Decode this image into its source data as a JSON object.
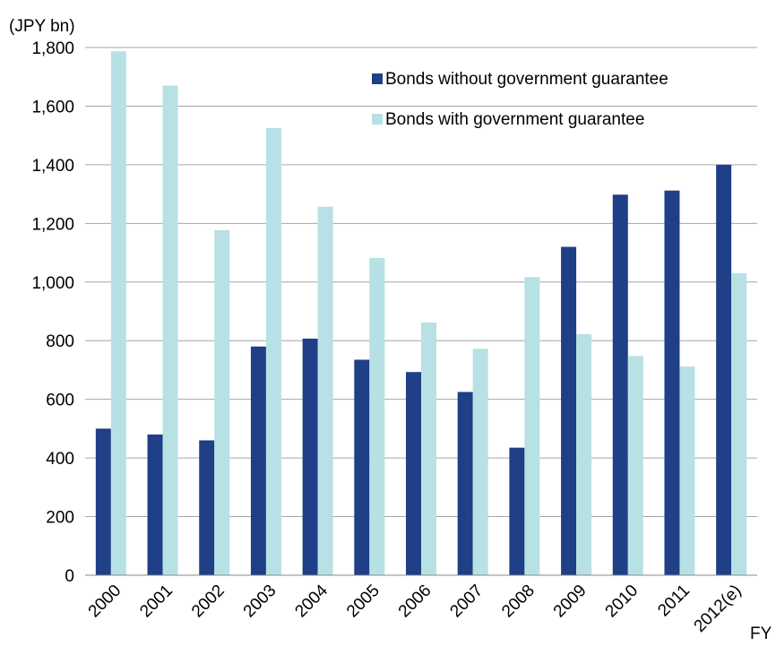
{
  "chart_data": {
    "type": "bar",
    "title": "",
    "ylabel": "(JPY bn)",
    "xlabel": "FY",
    "ylim": [
      0,
      1800
    ],
    "yticks": [
      0,
      200,
      400,
      600,
      800,
      1000,
      1200,
      1400,
      1600,
      1800
    ],
    "ytick_labels": [
      "0",
      "200",
      "400",
      "600",
      "800",
      "1,000",
      "1,200",
      "1,400",
      "1,600",
      "1,800"
    ],
    "grid": true,
    "legend_position": "top-right",
    "categories": [
      "2000",
      "2001",
      "2002",
      "2003",
      "2004",
      "2005",
      "2006",
      "2007",
      "2008",
      "2009",
      "2010",
      "2011",
      "2012(e)"
    ],
    "series": [
      {
        "name": "Bonds without government guarantee",
        "color": "#1f3f86",
        "values": [
          500,
          480,
          460,
          780,
          807,
          735,
          693,
          625,
          435,
          1120,
          1298,
          1312,
          1400
        ]
      },
      {
        "name": "Bonds with government guarantee",
        "color": "#b7e1e4",
        "values": [
          1787,
          1670,
          1177,
          1525,
          1257,
          1082,
          862,
          772,
          1017,
          822,
          748,
          712,
          1030
        ]
      }
    ]
  }
}
